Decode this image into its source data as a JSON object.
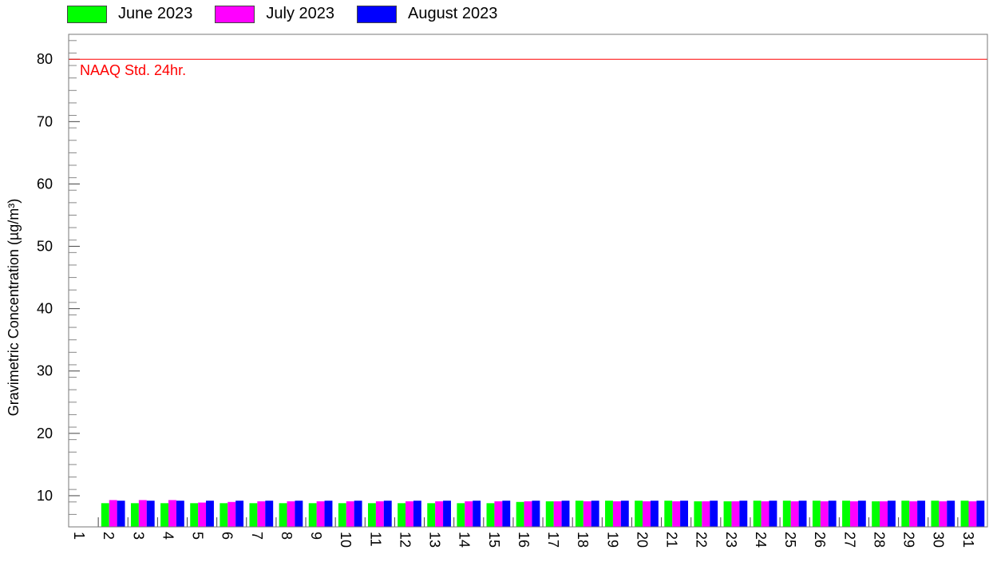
{
  "chart_data": {
    "type": "bar",
    "ylabel": "Gravimetric Concentration  (µg/m³)",
    "xlabel": "",
    "ylim": [
      5,
      84
    ],
    "yticks": [
      10,
      20,
      30,
      40,
      50,
      60,
      70,
      80
    ],
    "categories": [
      "1",
      "2",
      "3",
      "4",
      "5",
      "6",
      "7",
      "8",
      "9",
      "10",
      "11",
      "12",
      "13",
      "14",
      "15",
      "16",
      "17",
      "18",
      "19",
      "20",
      "21",
      "22",
      "23",
      "24",
      "25",
      "26",
      "27",
      "28",
      "29",
      "30",
      "31"
    ],
    "series": [
      {
        "name": "June 2023",
        "color": "#00ff00",
        "values": [
          null,
          8.8,
          8.8,
          8.8,
          8.8,
          8.8,
          8.8,
          8.8,
          8.8,
          8.8,
          8.8,
          8.8,
          8.8,
          8.8,
          8.8,
          9.0,
          9.1,
          9.2,
          9.2,
          9.2,
          9.2,
          9.1,
          9.1,
          9.2,
          9.2,
          9.2,
          9.2,
          9.1,
          9.2,
          9.2,
          9.2
        ]
      },
      {
        "name": "July 2023",
        "color": "#ff00ff",
        "values": [
          null,
          9.3,
          9.3,
          9.3,
          8.9,
          9.0,
          9.1,
          9.1,
          9.1,
          9.1,
          9.1,
          9.1,
          9.1,
          9.1,
          9.1,
          9.1,
          9.1,
          9.1,
          9.1,
          9.1,
          9.1,
          9.1,
          9.1,
          9.1,
          9.1,
          9.1,
          9.1,
          9.1,
          9.1,
          9.1,
          9.1
        ]
      },
      {
        "name": "August 2023",
        "color": "#0000ff",
        "values": [
          null,
          9.2,
          9.2,
          9.2,
          9.2,
          9.2,
          9.2,
          9.2,
          9.2,
          9.2,
          9.2,
          9.2,
          9.2,
          9.2,
          9.2,
          9.2,
          9.2,
          9.2,
          9.2,
          9.2,
          9.2,
          9.2,
          9.2,
          9.2,
          9.2,
          9.2,
          9.2,
          9.2,
          9.2,
          9.2,
          9.2
        ]
      }
    ],
    "reference_line": {
      "value": 80,
      "label": "NAAQ Std. 24hr.",
      "color": "#ff0000"
    },
    "legend_position": "top-left",
    "grid": false
  }
}
